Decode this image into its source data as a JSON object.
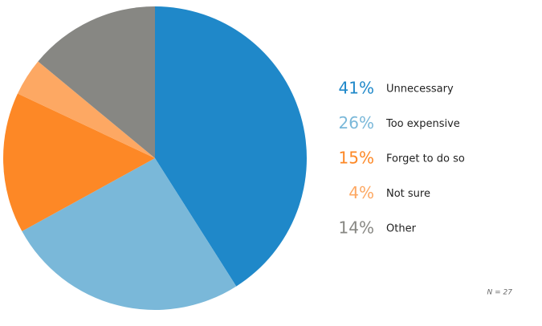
{
  "chart_data": {
    "type": "pie",
    "categories": [
      "Unnecessary",
      "Too expensive",
      "Forget to do so",
      "Not sure",
      "Other"
    ],
    "values": [
      41,
      26,
      15,
      4,
      14
    ],
    "value_labels": [
      "41%",
      "26%",
      "15%",
      "4%",
      "14%"
    ],
    "colors": [
      "#1f88c9",
      "#7ab8d9",
      "#fd8826",
      "#fda863",
      "#878783"
    ],
    "annotation": "N = 27"
  }
}
